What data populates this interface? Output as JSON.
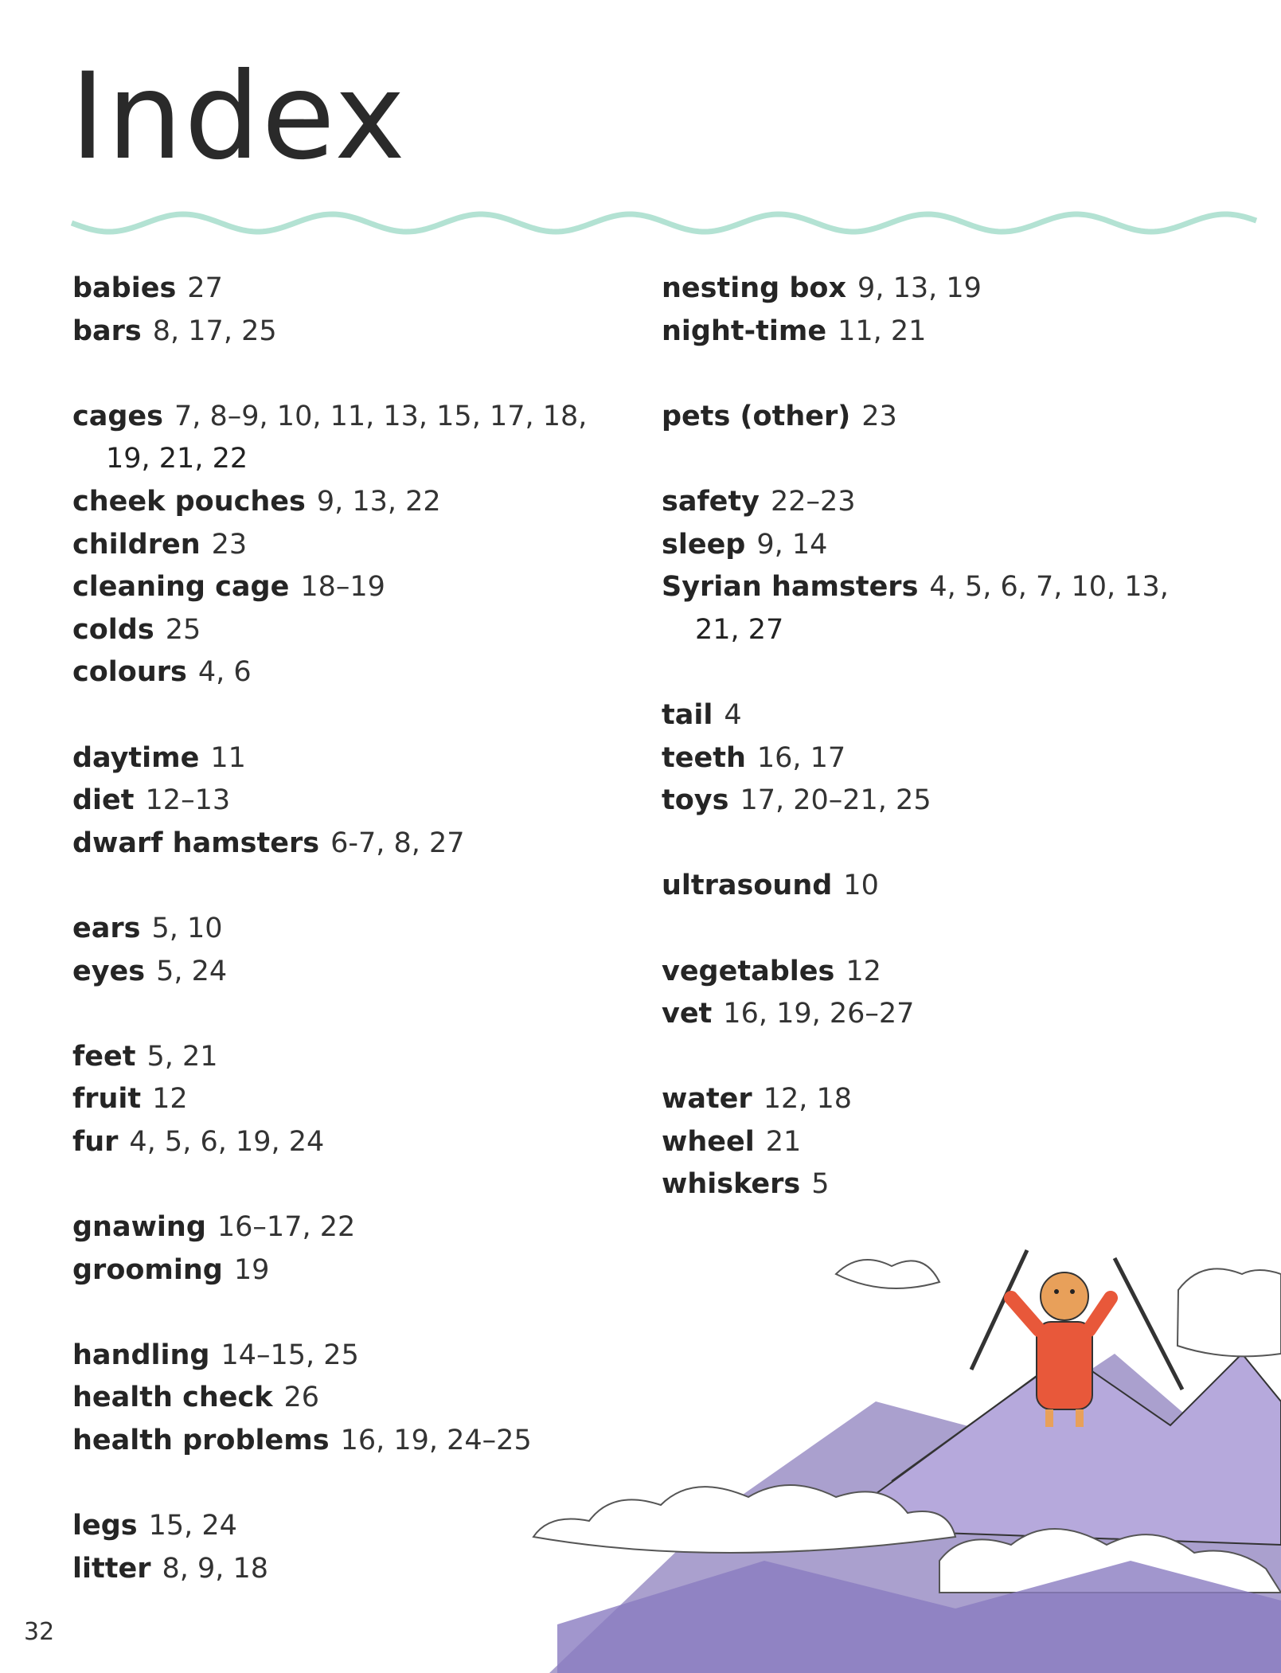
{
  "header": {
    "title": "Index"
  },
  "columns": [
    [
      [
        {
          "term": "babies",
          "pages": [
            "27"
          ]
        },
        {
          "term": "bars",
          "pages": [
            "8, 17, 25"
          ]
        }
      ],
      [
        {
          "term": "cages",
          "pages": [
            "7, 8–9, 10, 11, 13, 15, 17, 18,",
            "19, 21, 22"
          ]
        },
        {
          "term": "cheek pouches",
          "pages": [
            "9, 13, 22"
          ]
        },
        {
          "term": "children",
          "pages": [
            "23"
          ]
        },
        {
          "term": "cleaning cage",
          "pages": [
            "18–19"
          ]
        },
        {
          "term": "colds",
          "pages": [
            "25"
          ]
        },
        {
          "term": "colours",
          "pages": [
            "4, 6"
          ]
        }
      ],
      [
        {
          "term": "daytime",
          "pages": [
            "11"
          ]
        },
        {
          "term": "diet",
          "pages": [
            "12–13"
          ]
        },
        {
          "term": "dwarf hamsters",
          "pages": [
            "6-7, 8, 27"
          ]
        }
      ],
      [
        {
          "term": "ears",
          "pages": [
            "5, 10"
          ]
        },
        {
          "term": "eyes",
          "pages": [
            "5, 24"
          ]
        }
      ],
      [
        {
          "term": "feet",
          "pages": [
            "5, 21"
          ]
        },
        {
          "term": "fruit",
          "pages": [
            "12"
          ]
        },
        {
          "term": "fur",
          "pages": [
            "4, 5, 6, 19, 24"
          ]
        }
      ],
      [
        {
          "term": "gnawing",
          "pages": [
            "16–17, 22"
          ]
        },
        {
          "term": "grooming",
          "pages": [
            "19"
          ]
        }
      ],
      [
        {
          "term": "handling",
          "pages": [
            "14–15, 25"
          ]
        },
        {
          "term": "health check",
          "pages": [
            "26"
          ]
        },
        {
          "term": "health problems",
          "pages": [
            "16, 19, 24–25"
          ]
        }
      ],
      [
        {
          "term": "legs",
          "pages": [
            "15, 24"
          ]
        },
        {
          "term": "litter",
          "pages": [
            "8, 9, 18"
          ]
        }
      ]
    ],
    [
      [
        {
          "term": "nesting box",
          "pages": [
            "9, 13, 19"
          ]
        },
        {
          "term": "night-time",
          "pages": [
            "11, 21"
          ]
        }
      ],
      [
        {
          "term": "pets (other)",
          "pages": [
            "23"
          ]
        }
      ],
      [
        {
          "term": "safety",
          "pages": [
            "22–23"
          ]
        },
        {
          "term": "sleep",
          "pages": [
            "9, 14"
          ]
        },
        {
          "term": "Syrian hamsters",
          "pages": [
            "4, 5, 6, 7, 10, 13,",
            "21, 27"
          ]
        }
      ],
      [
        {
          "term": "tail",
          "pages": [
            "4"
          ]
        },
        {
          "term": "teeth",
          "pages": [
            "16, 17"
          ]
        },
        {
          "term": "toys",
          "pages": [
            "17, 20–21, 25"
          ]
        }
      ],
      [
        {
          "term": "ultrasound",
          "pages": [
            "10"
          ]
        }
      ],
      [
        {
          "term": "vegetables",
          "pages": [
            "12"
          ]
        },
        {
          "term": "vet",
          "pages": [
            "16, 19, 26–27"
          ]
        }
      ],
      [
        {
          "term": "water",
          "pages": [
            "12, 18"
          ]
        },
        {
          "term": "wheel",
          "pages": [
            "21"
          ]
        },
        {
          "term": "whiskers",
          "pages": [
            "5"
          ]
        }
      ]
    ]
  ],
  "page_number": "32"
}
